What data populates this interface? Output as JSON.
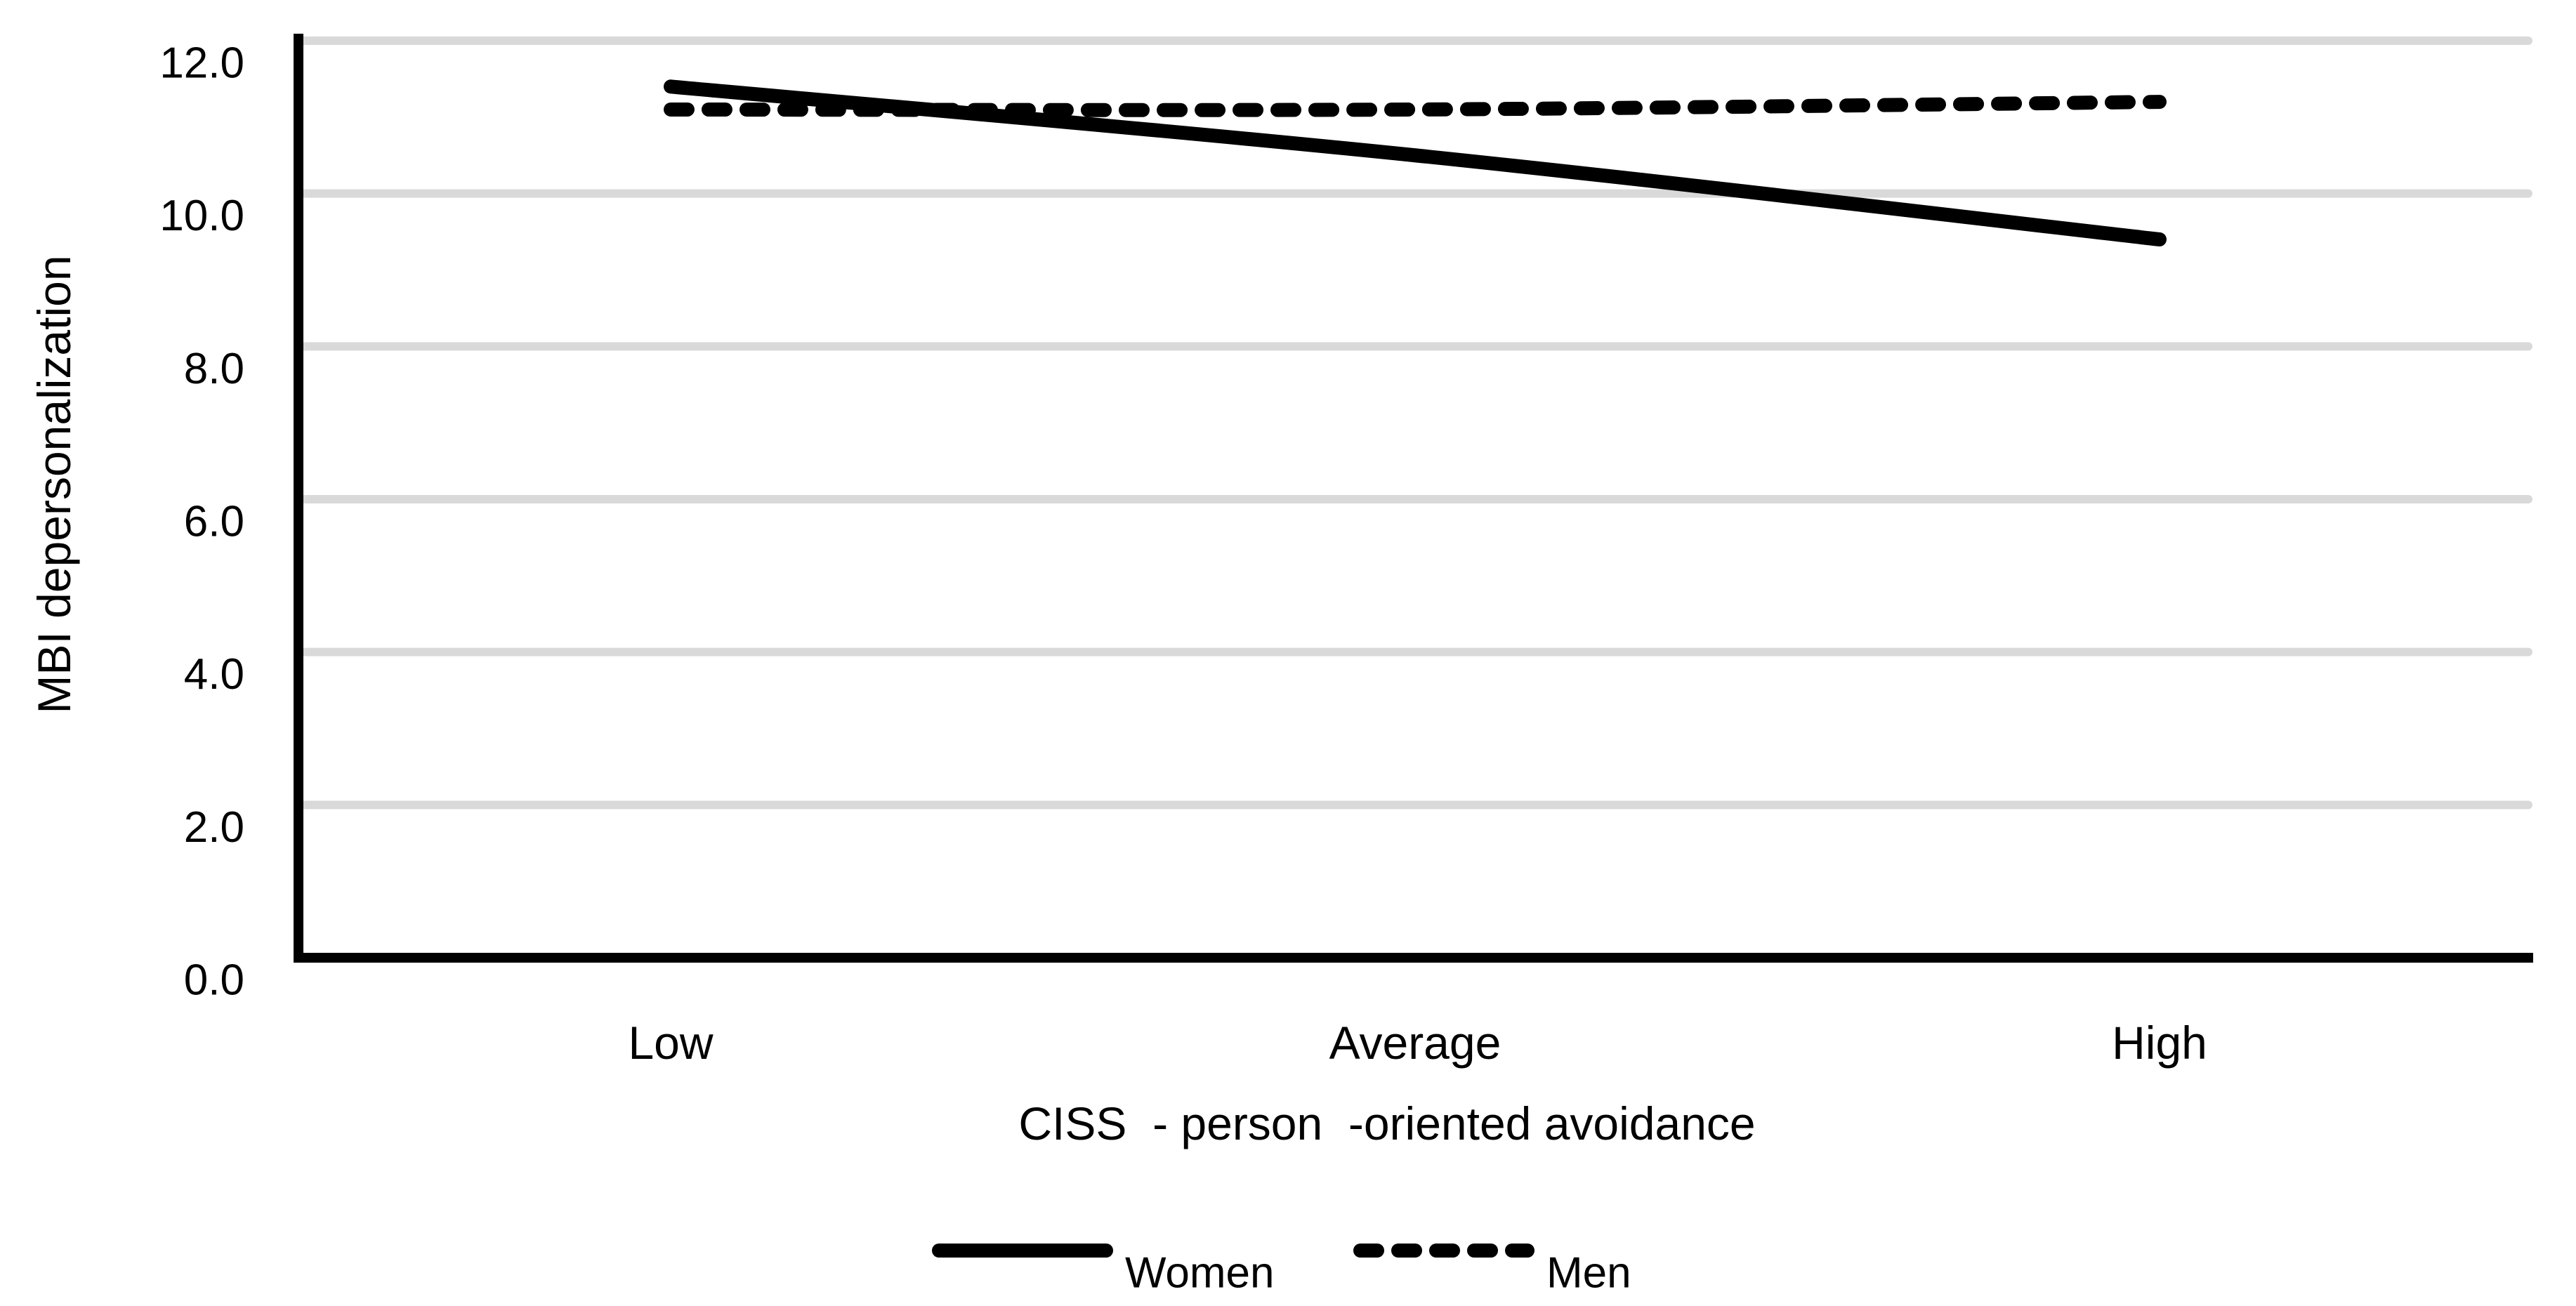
{
  "figure": {
    "background": "#ffffff",
    "text_color": "#000000"
  },
  "chart_data": {
    "type": "line",
    "title": "",
    "categories": [
      "Low",
      "Average",
      "High"
    ],
    "series": [
      {
        "name": "Women",
        "line_style": "solid",
        "color": "#000000",
        "values": [
          11.4,
          10.5,
          9.4
        ]
      },
      {
        "name": "Men",
        "line_style": "dashed",
        "color": "#000000",
        "values": [
          11.1,
          11.1,
          11.2
        ]
      }
    ],
    "xlabel": "CISS  - person  -oriented avoidance",
    "ylabel": "MBI depersonalization",
    "ylim": [
      0,
      12
    ],
    "ytick_step": 2,
    "ytick_labels": [
      "0.0",
      "2.0",
      "4.0",
      "6.0",
      "8.0",
      "10.0",
      "12.0"
    ],
    "grid": true,
    "gridline_color": "#d9d9d9",
    "axis_color": "#000000",
    "legend_position": "bottom",
    "line_smoothing": true
  }
}
